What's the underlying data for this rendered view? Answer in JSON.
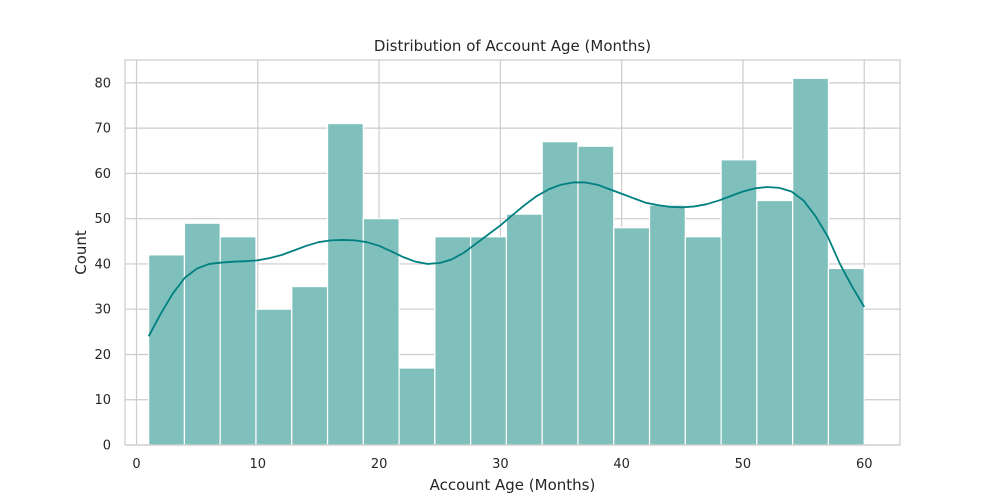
{
  "colors": {
    "bar_fill": "#7fbfbc",
    "kde_line": "#008080",
    "background": "#ffffff",
    "grid": "#cccccc"
  },
  "chart_data": {
    "type": "bar",
    "subtype": "histogram",
    "title": "Distribution of Account Age (Months)",
    "xlabel": "Account Age (Months)",
    "ylabel": "Count",
    "xlim": [
      -0.95,
      62.95
    ],
    "ylim": [
      0,
      85.05
    ],
    "xticks": [
      0,
      10,
      20,
      30,
      40,
      50,
      60
    ],
    "yticks": [
      0,
      10,
      20,
      30,
      40,
      50,
      60,
      70,
      80
    ],
    "grid": true,
    "legend": "none",
    "bins": [
      {
        "x0": 1.0,
        "x1": 3.95,
        "count": 42
      },
      {
        "x0": 3.95,
        "x1": 6.9,
        "count": 49
      },
      {
        "x0": 6.9,
        "x1": 9.85,
        "count": 46
      },
      {
        "x0": 9.85,
        "x1": 12.8,
        "count": 30
      },
      {
        "x0": 12.8,
        "x1": 15.75,
        "count": 35
      },
      {
        "x0": 15.75,
        "x1": 18.7,
        "count": 71
      },
      {
        "x0": 18.7,
        "x1": 21.65,
        "count": 50
      },
      {
        "x0": 21.65,
        "x1": 24.6,
        "count": 17
      },
      {
        "x0": 24.6,
        "x1": 27.55,
        "count": 46
      },
      {
        "x0": 27.55,
        "x1": 30.5,
        "count": 46
      },
      {
        "x0": 30.5,
        "x1": 33.45,
        "count": 51
      },
      {
        "x0": 33.45,
        "x1": 36.4,
        "count": 67
      },
      {
        "x0": 36.4,
        "x1": 39.35,
        "count": 66
      },
      {
        "x0": 39.35,
        "x1": 42.3,
        "count": 48
      },
      {
        "x0": 42.3,
        "x1": 45.25,
        "count": 53
      },
      {
        "x0": 45.25,
        "x1": 48.2,
        "count": 46
      },
      {
        "x0": 48.2,
        "x1": 51.15,
        "count": 63
      },
      {
        "x0": 51.15,
        "x1": 54.1,
        "count": 54
      },
      {
        "x0": 54.1,
        "x1": 57.05,
        "count": 81
      },
      {
        "x0": 57.05,
        "x1": 60.0,
        "count": 39
      }
    ],
    "kde": {
      "x": [
        1,
        2,
        3,
        4,
        5,
        6,
        7,
        8,
        9,
        10,
        11,
        12,
        13,
        14,
        15,
        16,
        17,
        18,
        19,
        20,
        21,
        22,
        23,
        24,
        25,
        26,
        27,
        28,
        29,
        30,
        31,
        32,
        33,
        34,
        35,
        36,
        37,
        38,
        39,
        40,
        41,
        42,
        43,
        44,
        45,
        46,
        47,
        48,
        49,
        50,
        51,
        52,
        53,
        54,
        55,
        56,
        57,
        58,
        59,
        60
      ],
      "y": [
        24,
        29,
        33.5,
        37,
        39,
        40,
        40.3,
        40.5,
        40.6,
        40.8,
        41.3,
        42,
        43,
        44,
        44.8,
        45.2,
        45.3,
        45.2,
        44.8,
        44,
        42.8,
        41.5,
        40.5,
        40,
        40.2,
        41,
        42.5,
        44.5,
        46.5,
        48.5,
        50.8,
        53,
        55,
        56.5,
        57.5,
        58,
        58,
        57.5,
        56.5,
        55.5,
        54.5,
        53.5,
        53,
        52.6,
        52.5,
        52.7,
        53.2,
        54,
        55,
        56,
        56.7,
        57,
        56.8,
        56,
        54,
        50.5,
        46,
        40,
        35,
        30.5
      ]
    }
  }
}
